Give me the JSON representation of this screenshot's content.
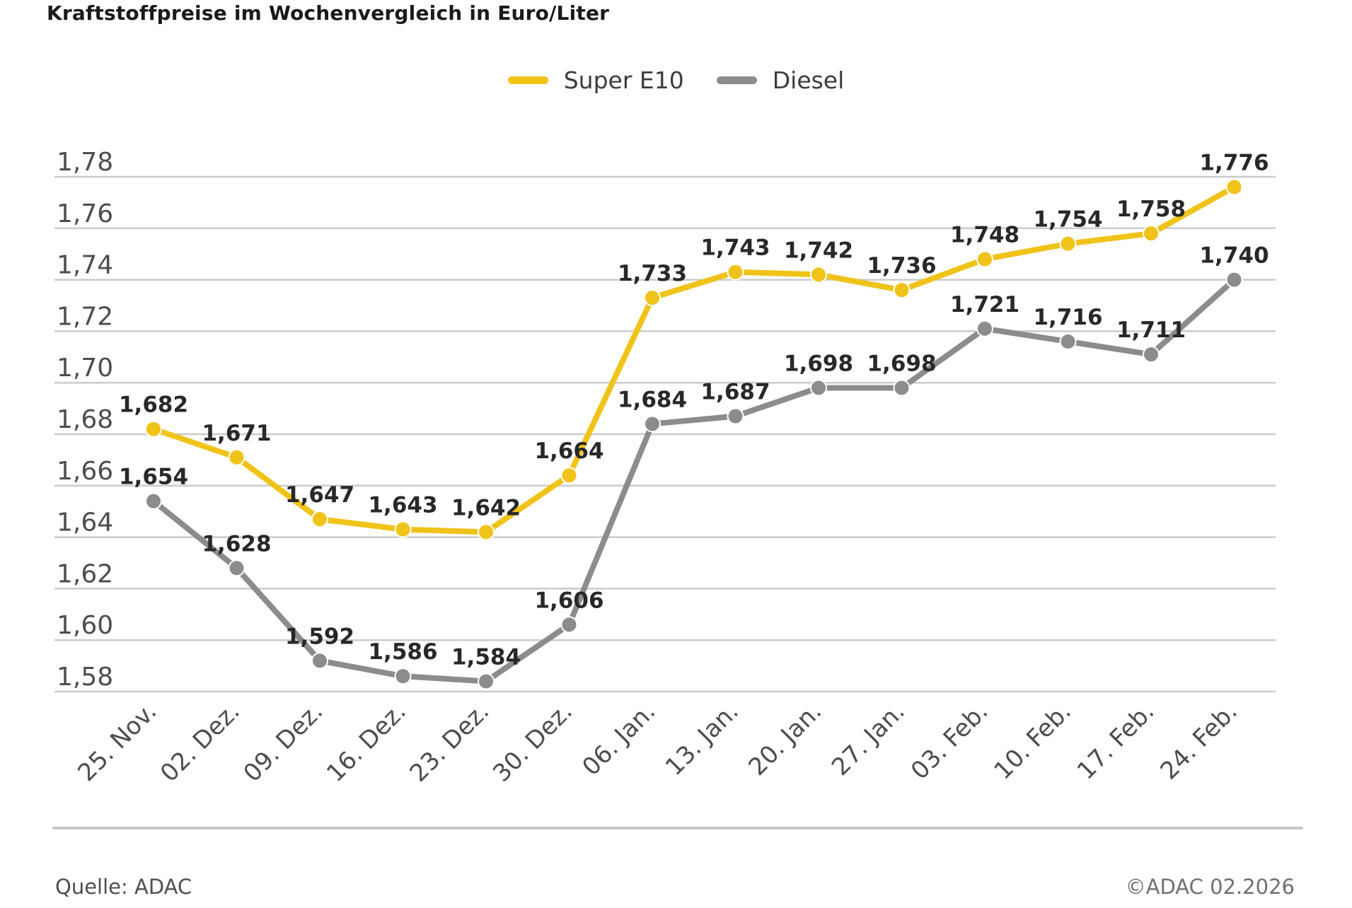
{
  "title": "Kraftstoffpreise im Wochenvergleich in Euro/Liter",
  "footer": {
    "source": "Quelle: ADAC",
    "copyright": "©ADAC 02.2026"
  },
  "colors": {
    "super_e10": "#F0C319",
    "diesel": "#8C8C8C",
    "gridline": "#CBCBCB",
    "tick_label": "#4D4D4D",
    "data_label": "#282828",
    "marker_border": "#FFFFFF"
  },
  "chart_data": {
    "type": "line",
    "title": "Kraftstoffpreise im Wochenvergleich in Euro/Liter",
    "xlabel": "",
    "ylabel": "Euro/Liter",
    "grid": true,
    "legend_position": "top",
    "ylim": [
      1.58,
      1.78
    ],
    "y_ticks": [
      1.78,
      1.76,
      1.74,
      1.72,
      1.7,
      1.68,
      1.66,
      1.64,
      1.62,
      1.6,
      1.58
    ],
    "decimal_separator": ",",
    "categories": [
      "25. Nov.",
      "02. Dez.",
      "09. Dez.",
      "16. Dez.",
      "23. Dez.",
      "30. Dez.",
      "06. Jan.",
      "13. Jan.",
      "20. Jan.",
      "27. Jan.",
      "03. Feb.",
      "10. Feb.",
      "17. Feb.",
      "24. Feb."
    ],
    "series": [
      {
        "name": "Super E10",
        "color": "#F0C319",
        "values": [
          1.682,
          1.671,
          1.647,
          1.643,
          1.642,
          1.664,
          1.733,
          1.743,
          1.742,
          1.736,
          1.748,
          1.754,
          1.758,
          1.776
        ]
      },
      {
        "name": "Diesel",
        "color": "#8C8C8C",
        "values": [
          1.654,
          1.628,
          1.592,
          1.586,
          1.584,
          1.606,
          1.684,
          1.687,
          1.698,
          1.698,
          1.721,
          1.716,
          1.711,
          1.74
        ]
      }
    ]
  }
}
